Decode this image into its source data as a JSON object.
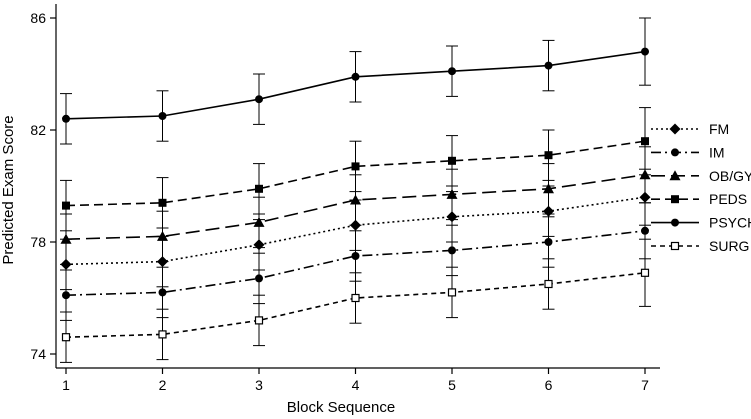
{
  "chart_data": {
    "type": "line",
    "xlabel": "Block Sequence",
    "ylabel": "Predicted Exam Score",
    "x": [
      1,
      2,
      3,
      4,
      5,
      6,
      7
    ],
    "xlim": [
      1,
      7
    ],
    "ylim": [
      73.5,
      86.5
    ],
    "yticks": [
      74,
      78,
      82,
      86
    ],
    "xticks": [
      1,
      2,
      3,
      4,
      5,
      6,
      7
    ],
    "grid": false,
    "legend_position": "right",
    "series": [
      {
        "name": "FM",
        "marker": "diamond-filled",
        "dash": "dotted",
        "values": [
          77.2,
          77.3,
          77.9,
          78.6,
          78.9,
          79.1,
          79.6
        ],
        "err": [
          0.9,
          0.9,
          0.9,
          0.9,
          0.9,
          0.9,
          1.0
        ]
      },
      {
        "name": "IM",
        "marker": "circle-filled",
        "dash": "dashdot",
        "values": [
          76.1,
          76.2,
          76.7,
          77.5,
          77.7,
          78.0,
          78.4
        ],
        "err": [
          0.9,
          0.9,
          0.9,
          0.9,
          0.9,
          0.9,
          1.0
        ]
      },
      {
        "name": "OB/GYN",
        "marker": "triangle-filled",
        "dash": "longdash",
        "values": [
          78.1,
          78.2,
          78.7,
          79.5,
          79.7,
          79.9,
          80.4
        ],
        "err": [
          0.9,
          0.9,
          0.9,
          0.9,
          0.9,
          0.9,
          1.0
        ]
      },
      {
        "name": "PEDS",
        "marker": "square-filled",
        "dash": "dashed",
        "values": [
          79.3,
          79.4,
          79.9,
          80.7,
          80.9,
          81.1,
          81.6
        ],
        "err": [
          0.9,
          0.9,
          0.9,
          0.9,
          0.9,
          0.9,
          1.2
        ]
      },
      {
        "name": "PSYCH",
        "marker": "circle-filled",
        "dash": "solid",
        "values": [
          82.4,
          82.5,
          83.1,
          83.9,
          84.1,
          84.3,
          84.8
        ],
        "err": [
          0.9,
          0.9,
          0.9,
          0.9,
          0.9,
          0.9,
          1.2
        ]
      },
      {
        "name": "SURG",
        "marker": "square-open",
        "dash": "shortdash",
        "values": [
          74.6,
          74.7,
          75.2,
          76.0,
          76.2,
          76.5,
          76.9
        ],
        "err": [
          0.9,
          0.9,
          0.9,
          0.9,
          0.9,
          0.9,
          1.2
        ]
      }
    ],
    "colors": {
      "line": "#000000",
      "background": "#ffffff"
    }
  }
}
